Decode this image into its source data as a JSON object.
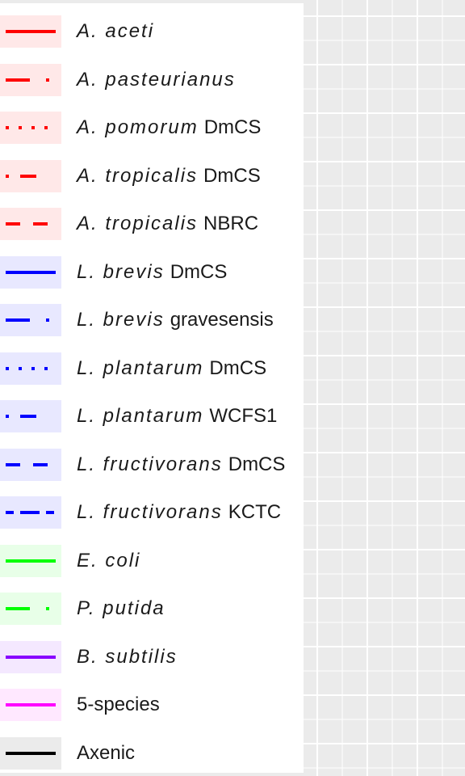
{
  "chart_data": {
    "type": "line",
    "legend": {
      "placement": "left",
      "entries": [
        {
          "species": "A. aceti",
          "strain": "",
          "color": "#FF0000",
          "linetype": "solid"
        },
        {
          "species": "A. pasteurianus",
          "strain": "",
          "color": "#FF0000",
          "linetype": "longdash-dot"
        },
        {
          "species": "A. pomorum",
          "strain": "DmCS",
          "color": "#FF0000",
          "linetype": "dotted"
        },
        {
          "species": "A. tropicalis",
          "strain": "DmCS",
          "color": "#FF0000",
          "linetype": "dotdash"
        },
        {
          "species": "A. tropicalis",
          "strain": "NBRC",
          "color": "#FF0000",
          "linetype": "dashed"
        },
        {
          "species": "L. brevis",
          "strain": "DmCS",
          "color": "#0000FF",
          "linetype": "solid"
        },
        {
          "species": "L. brevis",
          "strain": "gravesensis",
          "color": "#0000FF",
          "linetype": "longdash-dot"
        },
        {
          "species": "L. plantarum",
          "strain": "DmCS",
          "color": "#0000FF",
          "linetype": "dotted"
        },
        {
          "species": "L. plantarum",
          "strain": "WCFS1",
          "color": "#0000FF",
          "linetype": "dotdash"
        },
        {
          "species": "L. fructivorans",
          "strain": "DmCS",
          "color": "#0000FF",
          "linetype": "dashed"
        },
        {
          "species": "L. fructivorans",
          "strain": "KCTC",
          "color": "#0000FF",
          "linetype": "twodash"
        },
        {
          "species": "E. coli",
          "strain": "",
          "color": "#00FF00",
          "linetype": "solid"
        },
        {
          "species": "P. putida",
          "strain": "",
          "color": "#00FF00",
          "linetype": "longdash-dot"
        },
        {
          "species": "B. subtilis",
          "strain": "",
          "color": "#8800FF",
          "linetype": "solid"
        },
        {
          "species": "",
          "strain": "5-species",
          "color": "#FF00FF",
          "linetype": "solid"
        },
        {
          "species": "",
          "strain": "Axenic",
          "color": "#000000",
          "linetype": "solid"
        }
      ]
    },
    "grid": true
  }
}
